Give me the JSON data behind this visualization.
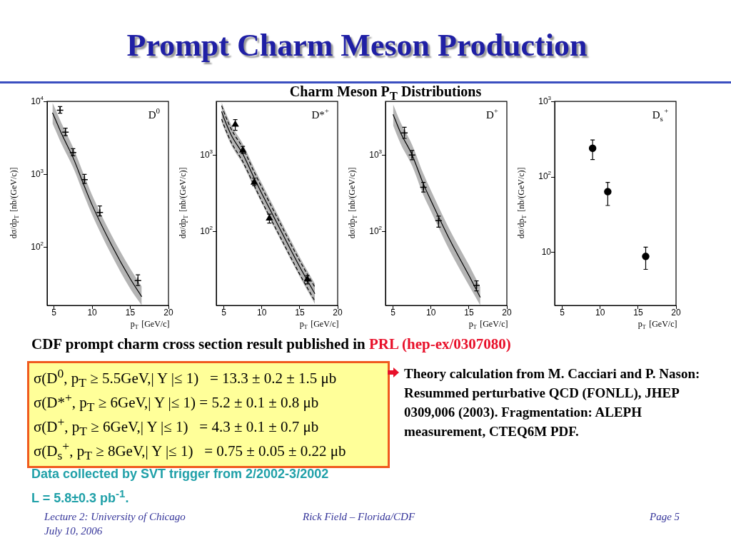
{
  "chart_data": [
    {
      "type": "other",
      "title": "Prompt Charm Meson Production",
      "subtitle": "Charm Meson P$_{T}$ Distributions"
    },
    {
      "type": "scatter",
      "title": "D$^{0}$",
      "xlabel": "p$_{T}$ [GeV/c]",
      "ylabel": "dσ/dp$_{T}$ [nb/(GeV/c)]",
      "log": "y",
      "grid": false,
      "legend": false,
      "xlim": [
        4.1,
        20
      ],
      "ylim": [
        16,
        10000
      ],
      "xticks": [
        5,
        10,
        15,
        20
      ],
      "yticks": [
        {
          "value": 100,
          "label": "10$^{2}$"
        },
        {
          "value": 1000,
          "label": "10$^{3}$"
        },
        {
          "value": 10000,
          "label": "10$^{4}$"
        }
      ],
      "series": [
        {
          "type": "line",
          "color": "#000000",
          "line_style": "solid",
          "marker": "none",
          "x": [
            4.8,
            5,
            6,
            7.5,
            9,
            10,
            12.5,
            15,
            16.5
          ],
          "values": [
            7000,
            6300,
            3600,
            1700,
            680,
            380,
            110,
            37,
            21
          ],
          "lower": [
            5000,
            4500,
            2600,
            1250,
            500,
            280,
            80,
            27,
            16
          ],
          "upper": [
            9600,
            8700,
            5000,
            2350,
            940,
            520,
            150,
            51,
            29
          ]
        },
        {
          "type": "scatter",
          "color": "#000000",
          "marker": "cross",
          "x": [
            5.8,
            6.5,
            7.5,
            9,
            11,
            16
          ],
          "values": [
            7600,
            3800,
            2000,
            850,
            300,
            35
          ],
          "errors": [
            [
              6900,
              8500
            ],
            [
              3400,
              4300
            ],
            [
              1800,
              2250
            ],
            [
              750,
              1000
            ],
            [
              270,
              370
            ],
            [
              30,
              42
            ]
          ]
        }
      ]
    },
    {
      "type": "scatter",
      "title": "D*$^{+}$",
      "xlabel": "p$_{T}$ [GeV/c]",
      "ylabel": "dσ/dp$_{T}$ [nb/(GeV/c)]",
      "log": "y",
      "grid": false,
      "legend": false,
      "xlim": [
        4,
        20
      ],
      "ylim": [
        11,
        5000
      ],
      "xticks": [
        5,
        10,
        15,
        20
      ],
      "yticks": [
        {
          "value": 100,
          "label": "10$^{2}$"
        },
        {
          "value": 1000,
          "label": "10$^{3}$"
        }
      ],
      "series": [
        {
          "type": "line",
          "color": "#000000",
          "line_style": "solid",
          "marker": "none",
          "x": [
            4.7,
            5,
            6,
            7.5,
            9,
            10,
            12.5,
            15,
            17
          ],
          "values": [
            3700,
            3050,
            1800,
            1030,
            500,
            316,
            104,
            35,
            15.6
          ],
          "lower": [
            2700,
            2250,
            1330,
            760,
            370,
            235,
            77,
            26,
            11.5
          ],
          "upper": [
            4900,
            4100,
            2450,
            1400,
            680,
            430,
            140,
            47,
            21
          ]
        },
        {
          "type": "line",
          "color": "#000000",
          "line_style": "dashed",
          "marker": "none",
          "x": [
            4.7,
            5,
            6,
            7.5,
            9,
            10,
            12.5,
            15,
            17
          ],
          "values": [
            4400,
            3650,
            2150,
            1240,
            600,
            380,
            125,
            42,
            19
          ]
        },
        {
          "type": "line",
          "color": "#000000",
          "line_style": "dashed",
          "marker": "none",
          "x": [
            4.7,
            5,
            6,
            7.5,
            9,
            10,
            12.5,
            15,
            17
          ],
          "values": [
            2950,
            2450,
            1450,
            820,
            400,
            250,
            83,
            28,
            12.5
          ]
        },
        {
          "type": "scatter",
          "color": "#000000",
          "marker": "triangle",
          "x": [
            6.5,
            7.5,
            9,
            11,
            16
          ],
          "values": [
            2500,
            1150,
            440,
            150,
            24
          ],
          "errors": [
            [
              2100,
              2900
            ],
            [
              1050,
              1300
            ],
            [
              400,
              500
            ],
            [
              130,
              170
            ],
            [
              21,
              27
            ]
          ]
        }
      ]
    },
    {
      "type": "scatter",
      "title": "D$^{+}$",
      "xlabel": "p$_{T}$ [GeV/c]",
      "ylabel": "dσ/dp$_{T}$ [nb/(GeV/c)]",
      "log": "y",
      "grid": false,
      "legend": false,
      "xlim": [
        4,
        20
      ],
      "ylim": [
        11,
        5000
      ],
      "xticks": [
        5,
        10,
        15,
        20
      ],
      "yticks": [
        {
          "value": 100,
          "label": "10$^{2}$"
        },
        {
          "value": 1000,
          "label": "10$^{3}$"
        }
      ],
      "series": [
        {
          "type": "line",
          "color": "#000000",
          "line_style": "solid",
          "marker": "none",
          "x": [
            5,
            6,
            7.5,
            9,
            10,
            12.5,
            15,
            16.5
          ],
          "values": [
            3400,
            1950,
            1010,
            420,
            255,
            78,
            27,
            14
          ],
          "lower": [
            2450,
            1400,
            730,
            300,
            185,
            56,
            20,
            11
          ],
          "upper": [
            4600,
            2650,
            1370,
            570,
            345,
            105,
            37,
            19
          ]
        },
        {
          "type": "scatter",
          "color": "#000000",
          "marker": "cross",
          "x": [
            6.5,
            7.5,
            9,
            11,
            16
          ],
          "values": [
            1950,
            1000,
            380,
            140,
            20
          ],
          "errors": [
            [
              1650,
              2300
            ],
            [
              870,
              1150
            ],
            [
              330,
              440
            ],
            [
              115,
              160
            ],
            [
              17,
              23
            ]
          ]
        }
      ]
    },
    {
      "type": "scatter",
      "title": "D$_{s}$$^{+}$",
      "xlabel": "p$_{T}$ [GeV/c]",
      "ylabel": "dσ/dp$_{T}$ [nb/(GeV/c)]",
      "log": "y",
      "grid": false,
      "legend": false,
      "xlim": [
        4,
        20
      ],
      "ylim": [
        2,
        1000
      ],
      "xticks": [
        5,
        10,
        15,
        20
      ],
      "yticks": [
        10,
        {
          "value": 100,
          "label": "10$^{2}$"
        },
        {
          "value": 1000,
          "label": "10$^{3}$"
        }
      ],
      "series": [
        {
          "type": "scatter",
          "color": "#000000",
          "marker": "circle",
          "x": [
            9,
            11,
            16
          ],
          "values": [
            240,
            64,
            8.9
          ],
          "errors": [
            [
              170,
              310
            ],
            [
              42,
              85
            ],
            [
              6,
              11.8
            ]
          ]
        }
      ]
    },
    {
      "type": "other",
      "annotations": [
        "CDF prompt charm cross section result published in",
        "PRL  (hep-ex/0307080)",
        "σ(D$^{0}$, p$_{T}$ ≥ 5.5GeV,| Y |≤ 1)   = 13.3 ± 0.2 ± 1.5 μb",
        "σ(D*$^{+}$, p$_{T}$ ≥ 6GeV,| Y |≤ 1) = 5.2 ± 0.1 ± 0.8 μb",
        "σ(D$^{+}$, p$_{T}$ ≥ 6GeV,| Y |≤ 1)   = 4.3 ± 0.1 ± 0.7 μb",
        "σ(D$_{s}$$^{+}$, p$_{T}$ ≥ 8GeV,| Y |≤ 1)   = 0.75 ± 0.05 ± 0.22 μb",
        "Theory calculation from M. Cacciari and P. Nason: Resummed perturbative QCD (FONLL), JHEP 0309,006 (2003). Fragmentation: ALEPH measurement, CTEQ6M PDF.",
        "Data collected by SVT trigger from 2/2002-3/2002",
        "L = 5.8±0.3 pb$^{-1}$.",
        "Lecture 2: University of Chicago",
        "July 10, 2006",
        "Rick Field – Florida/CDF",
        "Page 5"
      ]
    }
  ]
}
